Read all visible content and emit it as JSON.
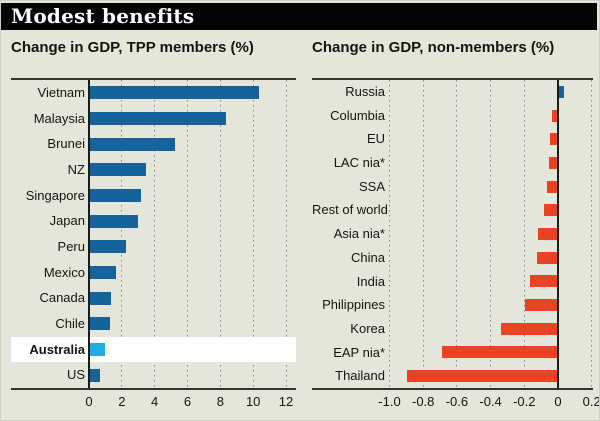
{
  "header": {
    "title": "Modest benefits"
  },
  "theme": {
    "background": "#e4e5db",
    "header_bg": "#050505",
    "header_text": "#ffffff",
    "text": "#141414",
    "rule": "#33332e",
    "grid_dot": "#84857c",
    "highlight_band": "#ffffff"
  },
  "chart_data": [
    {
      "type": "bar",
      "orientation": "horizontal",
      "title": "Change in GDP, TPP members (%)",
      "categories": [
        "Vietnam",
        "Malaysia",
        "Brunei",
        "NZ",
        "Singapore",
        "Japan",
        "Peru",
        "Mexico",
        "Canada",
        "Chile",
        "Australia",
        "US"
      ],
      "values": [
        10.3,
        8.3,
        5.2,
        3.4,
        3.1,
        2.9,
        2.2,
        1.6,
        1.3,
        1.2,
        0.9,
        0.6
      ],
      "bar_color": "#16639b",
      "highlight": {
        "category": "Australia",
        "color": "#23aae3",
        "band_color": "#ffffff"
      },
      "xlim": [
        0,
        12.6
      ],
      "xticks": [
        0,
        2,
        4,
        6,
        8,
        10,
        12
      ],
      "xtick_labels": [
        "0",
        "2",
        "4",
        "6",
        "8",
        "10",
        "12"
      ],
      "grid": "dotted-vertical",
      "legend": "none"
    },
    {
      "type": "bar",
      "orientation": "horizontal",
      "title": "Change in GDP, non-members (%)",
      "categories": [
        "Russia",
        "Columbia",
        "EU",
        "LAC nia*",
        "SSA",
        "Rest of world",
        "Asia nia*",
        "China",
        "India",
        "Philippines",
        "Korea",
        "EAP nia*",
        "Thailand"
      ],
      "values": [
        0.03,
        -0.03,
        -0.04,
        -0.05,
        -0.06,
        -0.08,
        -0.11,
        -0.12,
        -0.16,
        -0.19,
        -0.33,
        -0.68,
        -0.89
      ],
      "positive_color": "#16639b",
      "negative_color": "#ec4224",
      "xlim": [
        -1.46,
        0.21
      ],
      "xticks": [
        -1.0,
        -0.8,
        -0.6,
        -0.4,
        -0.2,
        0,
        0.2
      ],
      "xtick_labels": [
        "-1.0",
        "-0.8",
        "-0.6",
        "-0.4",
        "-0.2",
        "0",
        "0.2"
      ],
      "grid": "dotted-vertical",
      "legend": "none"
    }
  ]
}
